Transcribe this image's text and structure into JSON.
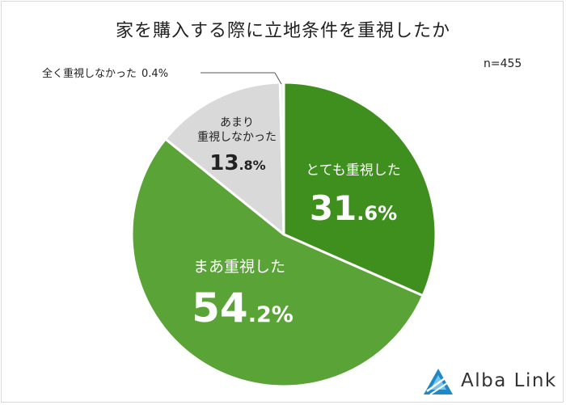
{
  "chart_data": {
    "type": "pie",
    "title": "家を購入する際に立地条件を重視したか",
    "note": "n=455",
    "slices": [
      {
        "label": "とても重視した",
        "value": 31.6,
        "pct_int": "31",
        "pct_dec": ".6%",
        "color": "#3f8f1e",
        "text_color": "#ffffff"
      },
      {
        "label": "まあ重視した",
        "value": 54.2,
        "pct_int": "54",
        "pct_dec": ".2%",
        "color": "#5aa336",
        "text_color": "#ffffff"
      },
      {
        "label_lines": [
          "あまり",
          "重視しなかった"
        ],
        "value": 13.8,
        "pct_int": "13",
        "pct_dec": ".8%",
        "color": "#d9d9d9",
        "text_color": "#222222"
      },
      {
        "label": "全く重視しなかった",
        "value": 0.4,
        "pct_text": "0.4%",
        "color": "#f0f0f0",
        "text_color": "#222222"
      }
    ]
  },
  "logo": {
    "text": "Alba Link"
  }
}
